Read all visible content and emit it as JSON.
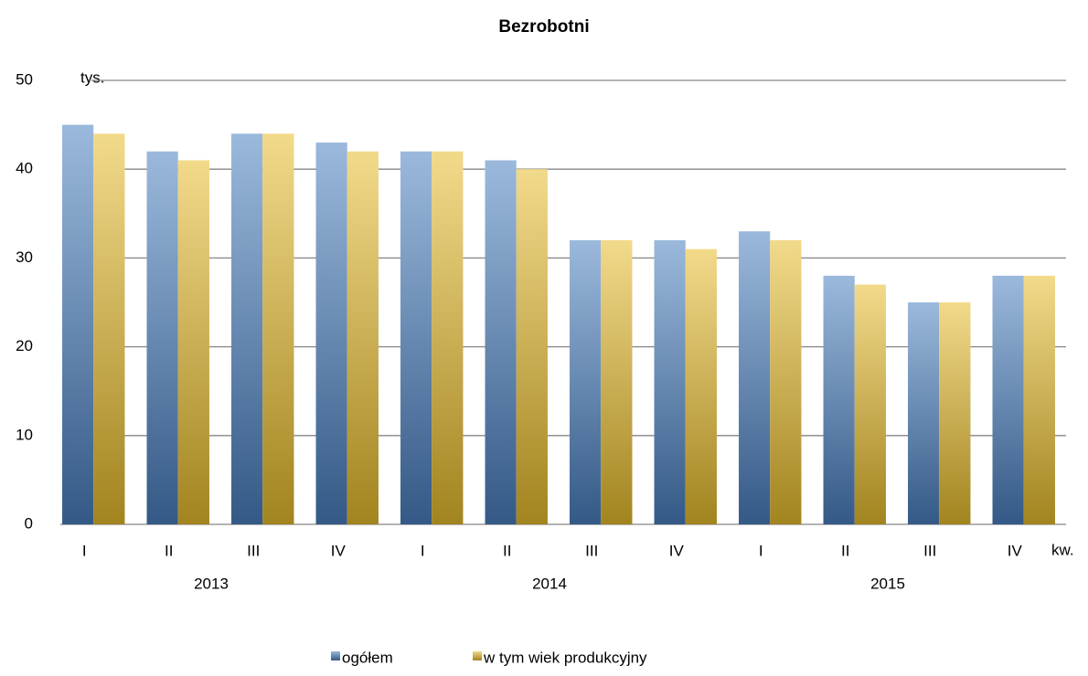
{
  "chart_data": {
    "type": "bar",
    "title": "Bezrobotni",
    "y_unit": "tys.",
    "x_unit": "kw.",
    "categories": [
      "I",
      "II",
      "III",
      "IV",
      "I",
      "II",
      "III",
      "IV",
      "I",
      "II",
      "III",
      "IV"
    ],
    "years": [
      "2013",
      "2014",
      "2015"
    ],
    "series": [
      {
        "name": "ogółem",
        "color": "#4a7fc0",
        "values": [
          45,
          42,
          44,
          43,
          42,
          41,
          32,
          32,
          33,
          28,
          25,
          28
        ]
      },
      {
        "name": "w tym wiek produkcyjny",
        "color": "#e8bc2c",
        "values": [
          44,
          41,
          44,
          42,
          42,
          40,
          32,
          31,
          32,
          27,
          25,
          28
        ]
      }
    ],
    "ylim": [
      0,
      50
    ],
    "yticks": [
      0,
      10,
      20,
      30,
      40,
      50
    ],
    "grid": true,
    "legend": "bottom"
  }
}
